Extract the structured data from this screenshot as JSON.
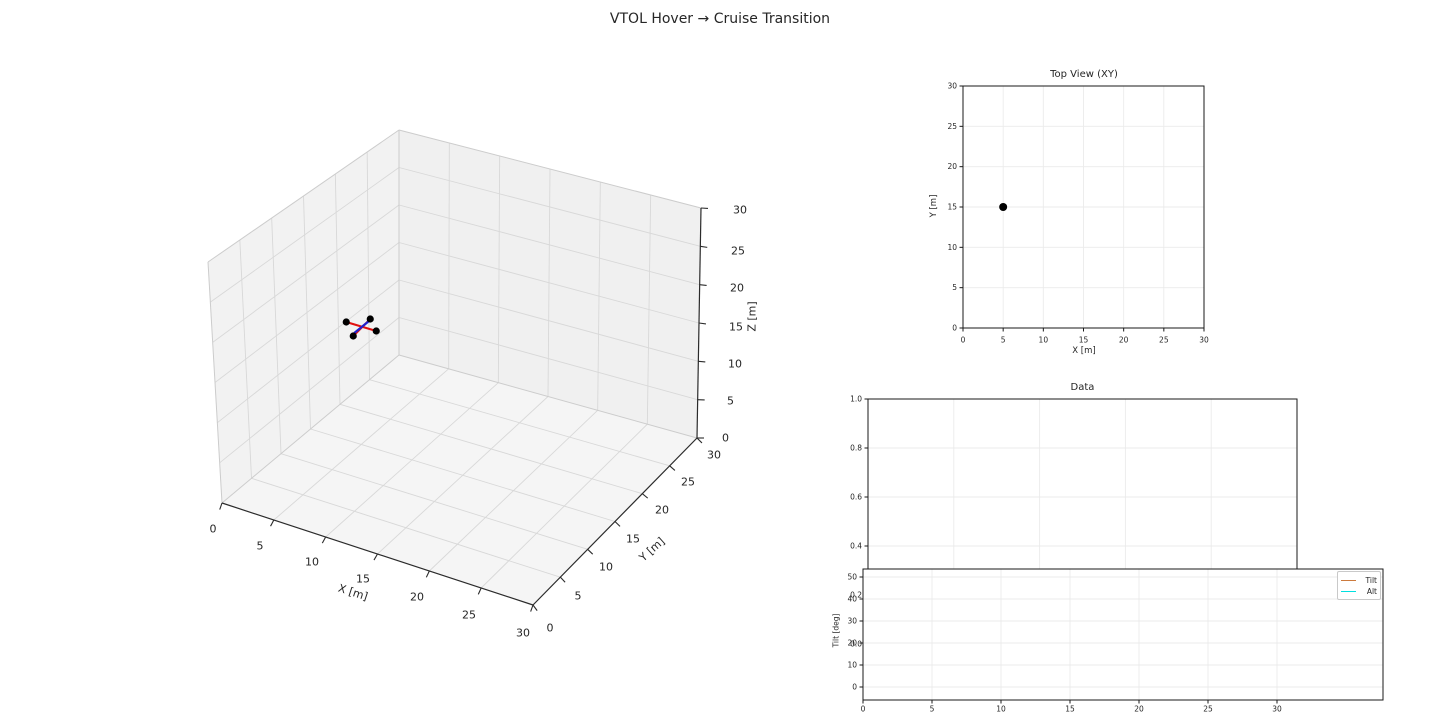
{
  "figure": {
    "suptitle": "VTOL Hover → Cruise Transition",
    "background": "#ffffff"
  },
  "chart_data": [
    {
      "id": "trajectory-3d",
      "type": "scatter3d",
      "title": "",
      "xlabel": "X [m]",
      "ylabel": "Y [m]",
      "zlabel": "Z [m]",
      "xlim": [
        0,
        30
      ],
      "ylim": [
        0,
        30
      ],
      "zlim": [
        0,
        30
      ],
      "ticks": [
        "0",
        "5",
        "10",
        "15",
        "20",
        "25",
        "30"
      ],
      "grid": true,
      "drone": {
        "x": 5,
        "y": 15,
        "z": 15,
        "arm_color": "#e01010",
        "heading_color": "#2020cc",
        "rotor_color": "#000000"
      }
    },
    {
      "id": "top-view",
      "type": "scatter",
      "title": "Top View (XY)",
      "xlabel": "X [m]",
      "ylabel": "Y [m]",
      "xlim": [
        0,
        30
      ],
      "ylim": [
        0,
        30
      ],
      "xticks": [
        "0",
        "5",
        "10",
        "15",
        "20",
        "25",
        "30"
      ],
      "yticks": [
        "0",
        "5",
        "10",
        "15",
        "20",
        "25",
        "30"
      ],
      "grid": true,
      "points": [
        {
          "x": 5,
          "y": 15,
          "color": "#000000"
        }
      ]
    },
    {
      "id": "data",
      "type": "line",
      "title": "Data",
      "ylim": [
        0,
        1
      ],
      "yticks": [
        "1.0",
        "0.8",
        "0.6",
        "0.4",
        "0.2",
        "0.0"
      ],
      "grid": true,
      "series": []
    },
    {
      "id": "tilt-alt",
      "type": "line",
      "title": "",
      "ylabel": "Tilt [deg]",
      "xlim": [
        0,
        30
      ],
      "ylim": [
        0,
        50
      ],
      "xticks": [
        "0",
        "5",
        "10",
        "15",
        "20",
        "25",
        "30"
      ],
      "yticks": [
        "0",
        "10",
        "20",
        "30",
        "40",
        "50"
      ],
      "grid": true,
      "legend_position": "upper right",
      "legend": [
        {
          "label": "Tilt",
          "color": "#cc7a3d"
        },
        {
          "label": "Alt",
          "color": "#00e0e0"
        }
      ],
      "series": []
    }
  ]
}
